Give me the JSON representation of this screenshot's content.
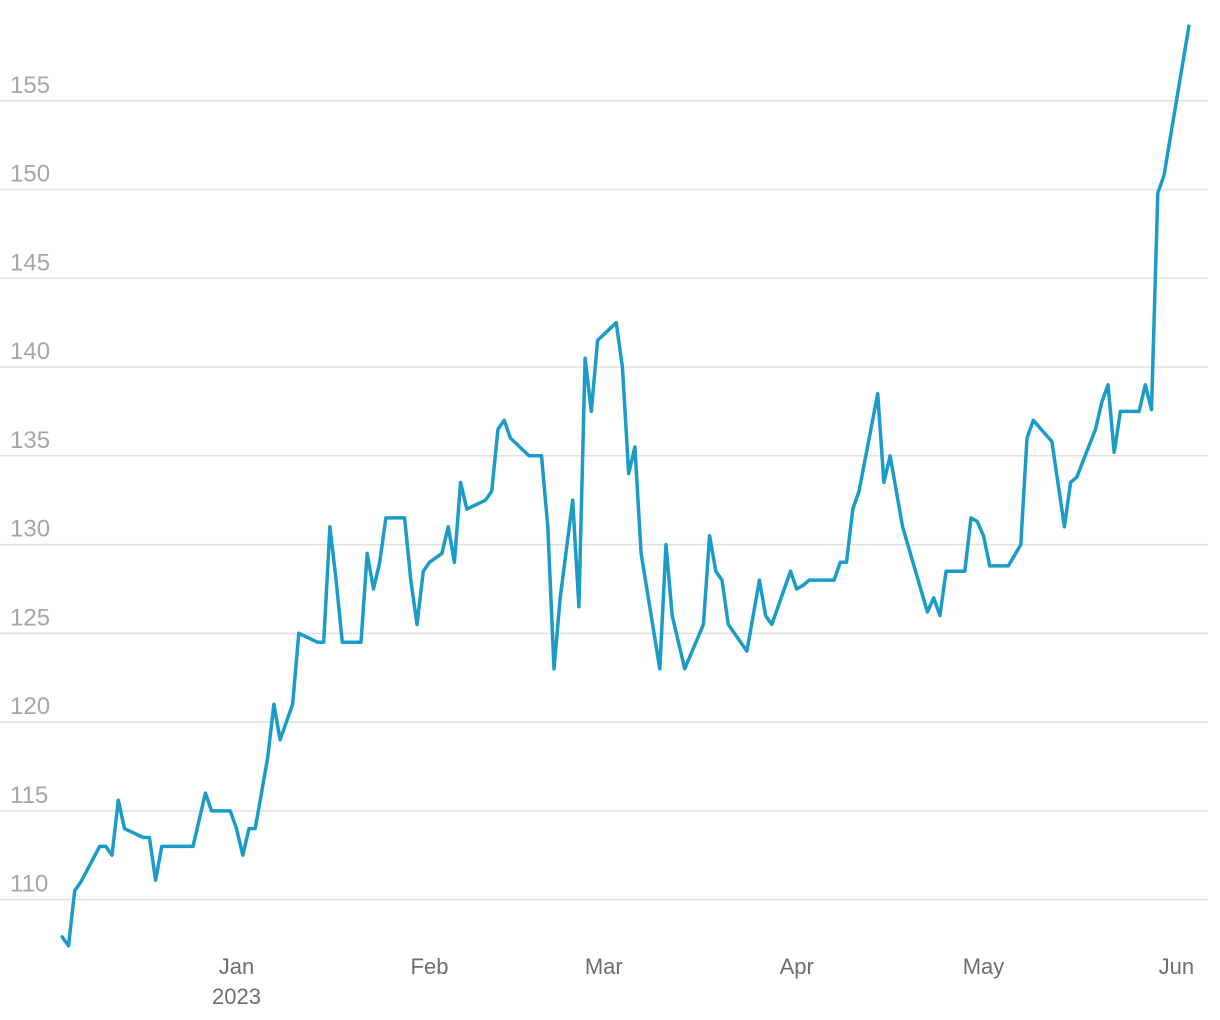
{
  "chart_data": {
    "type": "line",
    "title": "",
    "xlabel": "",
    "ylabel": "",
    "grid": true,
    "legend": "none",
    "ylim": [
      107.5,
      160
    ],
    "yticks": [
      110,
      115,
      120,
      125,
      130,
      135,
      140,
      145,
      150,
      155
    ],
    "xlim": [
      "2022-11-24",
      "2023-06-08"
    ],
    "xticks": [
      {
        "date": "2023-01-01",
        "label": "Jan",
        "sublabel": "2023"
      },
      {
        "date": "2023-02-01",
        "label": "Feb",
        "sublabel": ""
      },
      {
        "date": "2023-03-01",
        "label": "Mar",
        "sublabel": ""
      },
      {
        "date": "2023-04-01",
        "label": "Apr",
        "sublabel": ""
      },
      {
        "date": "2023-05-01",
        "label": "May",
        "sublabel": ""
      },
      {
        "date": "2023-06-01",
        "label": "Jun",
        "sublabel": ""
      }
    ],
    "series": [
      {
        "color": "#1a9bc8",
        "points": [
          [
            "2022-12-04",
            107.9
          ],
          [
            "2022-12-05",
            107.4
          ],
          [
            "2022-12-06",
            110.5
          ],
          [
            "2022-12-07",
            111.0
          ],
          [
            "2022-12-10",
            113.0
          ],
          [
            "2022-12-11",
            113.0
          ],
          [
            "2022-12-12",
            112.5
          ],
          [
            "2022-12-13",
            115.6
          ],
          [
            "2022-12-14",
            114.0
          ],
          [
            "2022-12-17",
            113.5
          ],
          [
            "2022-12-18",
            113.5
          ],
          [
            "2022-12-19",
            111.1
          ],
          [
            "2022-12-20",
            113.0
          ],
          [
            "2022-12-25",
            113.0
          ],
          [
            "2022-12-27",
            116.0
          ],
          [
            "2022-12-28",
            115.0
          ],
          [
            "2022-12-31",
            115.0
          ],
          [
            "2023-01-01",
            114.0
          ],
          [
            "2023-01-02",
            112.5
          ],
          [
            "2023-01-03",
            114.0
          ],
          [
            "2023-01-04",
            114.0
          ],
          [
            "2023-01-06",
            118.0
          ],
          [
            "2023-01-07",
            121.0
          ],
          [
            "2023-01-08",
            119.0
          ],
          [
            "2023-01-10",
            121.0
          ],
          [
            "2023-01-11",
            125.0
          ],
          [
            "2023-01-14",
            124.5
          ],
          [
            "2023-01-15",
            124.5
          ],
          [
            "2023-01-16",
            131.0
          ],
          [
            "2023-01-17",
            128.0
          ],
          [
            "2023-01-18",
            124.5
          ],
          [
            "2023-01-21",
            124.5
          ],
          [
            "2023-01-22",
            129.5
          ],
          [
            "2023-01-23",
            127.5
          ],
          [
            "2023-01-24",
            129.0
          ],
          [
            "2023-01-25",
            131.5
          ],
          [
            "2023-01-28",
            131.5
          ],
          [
            "2023-01-29",
            128.0
          ],
          [
            "2023-01-30",
            125.5
          ],
          [
            "2023-01-31",
            128.5
          ],
          [
            "2023-02-01",
            129.0
          ],
          [
            "2023-02-03",
            129.5
          ],
          [
            "2023-02-04",
            131.0
          ],
          [
            "2023-02-05",
            129.0
          ],
          [
            "2023-02-06",
            133.5
          ],
          [
            "2023-02-07",
            132.0
          ],
          [
            "2023-02-10",
            132.5
          ],
          [
            "2023-02-11",
            133.0
          ],
          [
            "2023-02-12",
            136.5
          ],
          [
            "2023-02-13",
            137.0
          ],
          [
            "2023-02-14",
            136.0
          ],
          [
            "2023-02-17",
            135.0
          ],
          [
            "2023-02-19",
            135.0
          ],
          [
            "2023-02-20",
            131.0
          ],
          [
            "2023-02-21",
            123.0
          ],
          [
            "2023-02-22",
            127.0
          ],
          [
            "2023-02-24",
            132.5
          ],
          [
            "2023-02-25",
            126.5
          ],
          [
            "2023-02-26",
            140.5
          ],
          [
            "2023-02-27",
            137.5
          ],
          [
            "2023-02-28",
            141.5
          ],
          [
            "2023-03-03",
            142.5
          ],
          [
            "2023-03-04",
            140.0
          ],
          [
            "2023-03-05",
            134.0
          ],
          [
            "2023-03-06",
            135.5
          ],
          [
            "2023-03-07",
            129.5
          ],
          [
            "2023-03-10",
            123.0
          ],
          [
            "2023-03-11",
            130.0
          ],
          [
            "2023-03-12",
            126.0
          ],
          [
            "2023-03-14",
            123.0
          ],
          [
            "2023-03-17",
            125.5
          ],
          [
            "2023-03-18",
            130.5
          ],
          [
            "2023-03-19",
            128.5
          ],
          [
            "2023-03-20",
            128.0
          ],
          [
            "2023-03-21",
            125.5
          ],
          [
            "2023-03-24",
            124.0
          ],
          [
            "2023-03-26",
            128.0
          ],
          [
            "2023-03-27",
            126.0
          ],
          [
            "2023-03-28",
            125.5
          ],
          [
            "2023-03-31",
            128.5
          ],
          [
            "2023-04-01",
            127.5
          ],
          [
            "2023-04-02",
            127.7
          ],
          [
            "2023-04-03",
            128.0
          ],
          [
            "2023-04-07",
            128.0
          ],
          [
            "2023-04-08",
            129.0
          ],
          [
            "2023-04-09",
            129.0
          ],
          [
            "2023-04-10",
            132.0
          ],
          [
            "2023-04-11",
            133.0
          ],
          [
            "2023-04-14",
            138.5
          ],
          [
            "2023-04-15",
            133.5
          ],
          [
            "2023-04-16",
            135.0
          ],
          [
            "2023-04-18",
            131.0
          ],
          [
            "2023-04-22",
            126.2
          ],
          [
            "2023-04-23",
            127.0
          ],
          [
            "2023-04-24",
            126.0
          ],
          [
            "2023-04-25",
            128.5
          ],
          [
            "2023-04-28",
            128.5
          ],
          [
            "2023-04-29",
            131.5
          ],
          [
            "2023-04-30",
            131.3
          ],
          [
            "2023-05-01",
            130.5
          ],
          [
            "2023-05-02",
            128.8
          ],
          [
            "2023-05-05",
            128.8
          ],
          [
            "2023-05-07",
            130.0
          ],
          [
            "2023-05-08",
            136.0
          ],
          [
            "2023-05-09",
            137.0
          ],
          [
            "2023-05-12",
            135.8
          ],
          [
            "2023-05-14",
            131.0
          ],
          [
            "2023-05-15",
            133.5
          ],
          [
            "2023-05-16",
            133.8
          ],
          [
            "2023-05-19",
            136.5
          ],
          [
            "2023-05-20",
            138.0
          ],
          [
            "2023-05-21",
            139.0
          ],
          [
            "2023-05-22",
            135.2
          ],
          [
            "2023-05-23",
            137.5
          ],
          [
            "2023-05-26",
            137.5
          ],
          [
            "2023-05-27",
            139.0
          ],
          [
            "2023-05-28",
            137.6
          ],
          [
            "2023-05-29",
            149.8
          ],
          [
            "2023-05-30",
            150.8
          ],
          [
            "2023-06-03",
            159.2
          ]
        ]
      }
    ]
  }
}
